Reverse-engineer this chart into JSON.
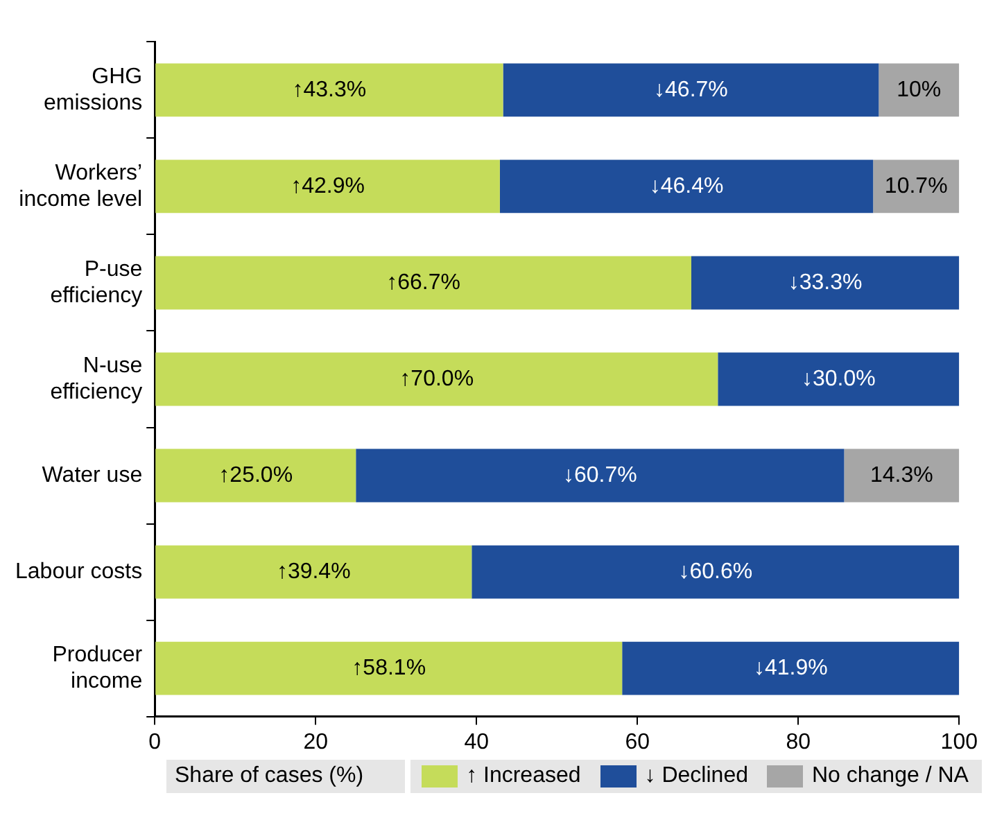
{
  "chart_data": {
    "type": "bar",
    "orientation": "horizontal",
    "stacked": true,
    "xlabel": "Share of cases (%)",
    "categories": [
      "GHG\nemissions",
      "Workers’\nincome level",
      "P-use\nefficiency",
      "N-use\nefficiency",
      "Water use",
      "Labour costs",
      "Producer\nincome"
    ],
    "series": [
      {
        "name": "↑ Increased",
        "color": "#c5dc5a",
        "values": [
          43.3,
          42.9,
          66.7,
          70.0,
          25.0,
          39.4,
          58.1
        ],
        "value_labels": [
          "↑43.3%",
          "↑42.9%",
          "↑66.7%",
          "↑70.0%",
          "↑25.0%",
          "↑39.4%",
          "↑58.1%"
        ]
      },
      {
        "name": "↓ Declined",
        "color": "#1f4e9a",
        "values": [
          46.7,
          46.4,
          33.3,
          30.0,
          60.7,
          60.6,
          41.9
        ],
        "value_labels": [
          "↓46.7%",
          "↓46.4%",
          "↓33.3%",
          "↓30.0%",
          "↓60.7%",
          "↓60.6%",
          "↓41.9%"
        ]
      },
      {
        "name": "No change / NA",
        "color": "#a6a6a6",
        "values": [
          10,
          10.7,
          null,
          null,
          14.3,
          null,
          null
        ],
        "value_labels": [
          "10%",
          "10.7%",
          null,
          null,
          "14.3%",
          null,
          null
        ]
      }
    ],
    "xlim": [
      0,
      100
    ],
    "xticks": [
      0,
      20,
      40,
      60,
      80,
      100
    ],
    "grid": false,
    "legend": "bottom"
  }
}
